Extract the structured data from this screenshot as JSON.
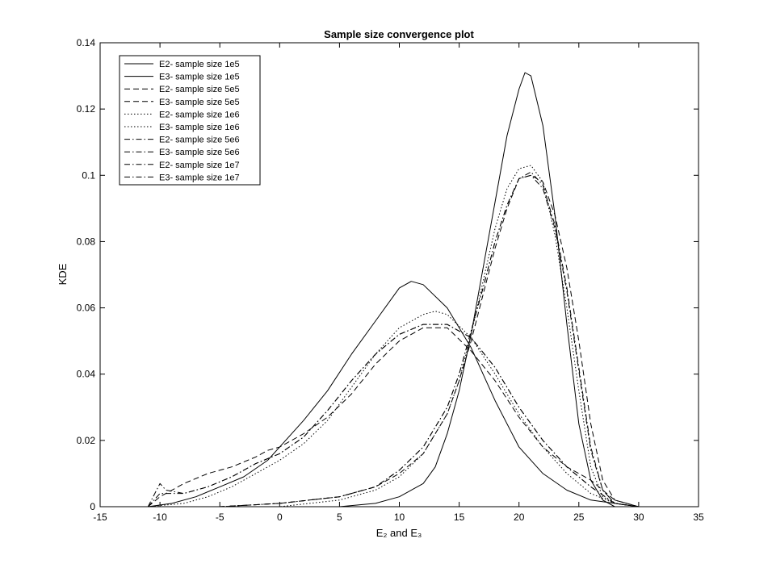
{
  "chart_data": {
    "type": "line",
    "title": "Sample size convergence plot",
    "xlabel": "E₂ and E₃",
    "ylabel": "KDE",
    "xlim": [
      -15,
      35
    ],
    "ylim": [
      0,
      0.14
    ],
    "xticks": [
      -15,
      -10,
      -5,
      0,
      5,
      10,
      15,
      20,
      25,
      30,
      35
    ],
    "yticks": [
      0,
      0.02,
      0.04,
      0.06,
      0.08,
      0.1,
      0.12,
      0.14
    ],
    "ytick_labels": [
      "0",
      "0.02",
      "0.04",
      "0.06",
      "0.08",
      "0.1",
      "0.12",
      "0.14"
    ],
    "grid": false,
    "legend_position": "top-left",
    "series": [
      {
        "name": "E2- sample size 1e5",
        "style": "solid",
        "x": [
          -11,
          -9,
          -7,
          -5,
          -3,
          -1,
          0,
          2,
          4,
          6,
          8,
          10,
          11,
          12,
          14,
          16,
          18,
          20,
          22,
          24,
          26,
          28,
          30,
          32
        ],
        "y": [
          0,
          0.001,
          0.003,
          0.006,
          0.009,
          0.014,
          0.018,
          0.026,
          0.035,
          0.046,
          0.056,
          0.066,
          0.068,
          0.067,
          0.06,
          0.048,
          0.032,
          0.018,
          0.01,
          0.005,
          0.002,
          0.001,
          0,
          0
        ]
      },
      {
        "name": "E3- sample size 1e5",
        "style": "solid",
        "x": [
          -11,
          -5,
          0,
          5,
          8,
          10,
          12,
          13,
          14,
          15,
          16,
          17,
          18,
          19,
          20,
          20.5,
          21,
          22,
          23,
          24,
          25,
          26,
          27,
          28,
          30
        ],
        "y": [
          0,
          0,
          0,
          0,
          0.001,
          0.003,
          0.007,
          0.012,
          0.022,
          0.035,
          0.052,
          0.072,
          0.092,
          0.112,
          0.126,
          0.131,
          0.13,
          0.115,
          0.088,
          0.055,
          0.025,
          0.008,
          0.002,
          0,
          0
        ]
      },
      {
        "name": "E2- sample size 5e5",
        "style": "dash",
        "x": [
          -11,
          -10,
          -8,
          -6,
          -4,
          -2,
          -1,
          0,
          2,
          4,
          6,
          8,
          10,
          12,
          14,
          16,
          18,
          20,
          22,
          24,
          26,
          27,
          28,
          30
        ],
        "y": [
          0,
          0.003,
          0.007,
          0.01,
          0.012,
          0.015,
          0.017,
          0.018,
          0.022,
          0.027,
          0.034,
          0.043,
          0.05,
          0.054,
          0.054,
          0.047,
          0.038,
          0.027,
          0.018,
          0.012,
          0.008,
          0.005,
          0.002,
          0
        ]
      },
      {
        "name": "E3- sample size 5e5",
        "style": "dash",
        "x": [
          -11,
          -5,
          0,
          5,
          8,
          10,
          12,
          14,
          15,
          16,
          17,
          18,
          19,
          20,
          21,
          22,
          23,
          24,
          25,
          26,
          27,
          28,
          30
        ],
        "y": [
          0,
          0,
          0.001,
          0.003,
          0.006,
          0.01,
          0.016,
          0.028,
          0.038,
          0.05,
          0.064,
          0.078,
          0.09,
          0.099,
          0.1,
          0.098,
          0.088,
          0.072,
          0.05,
          0.025,
          0.008,
          0.002,
          0
        ]
      },
      {
        "name": "E2- sample size 1e6",
        "style": "dot",
        "x": [
          -11,
          -8,
          -6,
          -4,
          -2,
          0,
          2,
          4,
          6,
          8,
          10,
          12,
          13,
          14,
          16,
          18,
          20,
          22,
          24,
          26,
          28,
          30
        ],
        "y": [
          0,
          0.001,
          0.003,
          0.006,
          0.01,
          0.014,
          0.019,
          0.026,
          0.036,
          0.046,
          0.054,
          0.058,
          0.059,
          0.058,
          0.051,
          0.04,
          0.028,
          0.018,
          0.01,
          0.004,
          0.001,
          0
        ]
      },
      {
        "name": "E3- sample size 1e6",
        "style": "dot",
        "x": [
          -11,
          -5,
          0,
          5,
          8,
          10,
          12,
          14,
          15,
          16,
          17,
          18,
          19,
          20,
          21,
          22,
          23,
          24,
          25,
          26,
          27,
          28,
          30
        ],
        "y": [
          0,
          0,
          0,
          0.002,
          0.005,
          0.009,
          0.016,
          0.028,
          0.038,
          0.052,
          0.068,
          0.084,
          0.096,
          0.102,
          0.103,
          0.098,
          0.082,
          0.06,
          0.035,
          0.012,
          0.003,
          0.001,
          0
        ]
      },
      {
        "name": "E2- sample size 5e6",
        "style": "dashdot",
        "x": [
          -11,
          -10,
          -8,
          -6,
          -4,
          -2,
          0,
          2,
          4,
          6,
          8,
          10,
          12,
          14,
          16,
          18,
          20,
          22,
          24,
          26,
          28,
          30
        ],
        "y": [
          0,
          0.004,
          0.004,
          0.006,
          0.009,
          0.013,
          0.016,
          0.021,
          0.029,
          0.038,
          0.046,
          0.052,
          0.055,
          0.055,
          0.051,
          0.042,
          0.03,
          0.02,
          0.012,
          0.006,
          0.001,
          0
        ]
      },
      {
        "name": "E3- sample size 5e6",
        "style": "dashdot",
        "x": [
          -11,
          -5,
          0,
          5,
          8,
          10,
          12,
          14,
          15,
          16,
          17,
          18,
          19,
          20,
          21,
          22,
          23,
          24,
          25,
          26,
          27,
          28,
          30
        ],
        "y": [
          0,
          0,
          0.001,
          0.003,
          0.006,
          0.011,
          0.018,
          0.03,
          0.04,
          0.053,
          0.066,
          0.08,
          0.091,
          0.099,
          0.101,
          0.097,
          0.085,
          0.066,
          0.042,
          0.018,
          0.005,
          0.001,
          0
        ]
      },
      {
        "name": "E2- sample size 1e7",
        "style": "dashdot",
        "x": [
          -11,
          -10,
          -9.5,
          -8,
          -6,
          -4,
          -2,
          0,
          2,
          4,
          6,
          8,
          10,
          12,
          14,
          16,
          18,
          20,
          22,
          24,
          26,
          28,
          30
        ],
        "y": [
          0,
          0.007,
          0.005,
          0.004,
          0.006,
          0.009,
          0.013,
          0.016,
          0.021,
          0.029,
          0.038,
          0.046,
          0.052,
          0.055,
          0.055,
          0.051,
          0.042,
          0.03,
          0.02,
          0.012,
          0.006,
          0.001,
          0
        ]
      },
      {
        "name": "E3- sample size 1e7",
        "style": "dashdot",
        "x": [
          -11,
          -5,
          0,
          5,
          8,
          10,
          12,
          14,
          15,
          16,
          17,
          18,
          19,
          20,
          21,
          22,
          23,
          24,
          25,
          26,
          27,
          28,
          30
        ],
        "y": [
          0,
          0,
          0.001,
          0.003,
          0.006,
          0.011,
          0.018,
          0.03,
          0.04,
          0.053,
          0.066,
          0.08,
          0.091,
          0.099,
          0.1,
          0.096,
          0.084,
          0.065,
          0.041,
          0.017,
          0.005,
          0.001,
          0
        ]
      }
    ]
  }
}
